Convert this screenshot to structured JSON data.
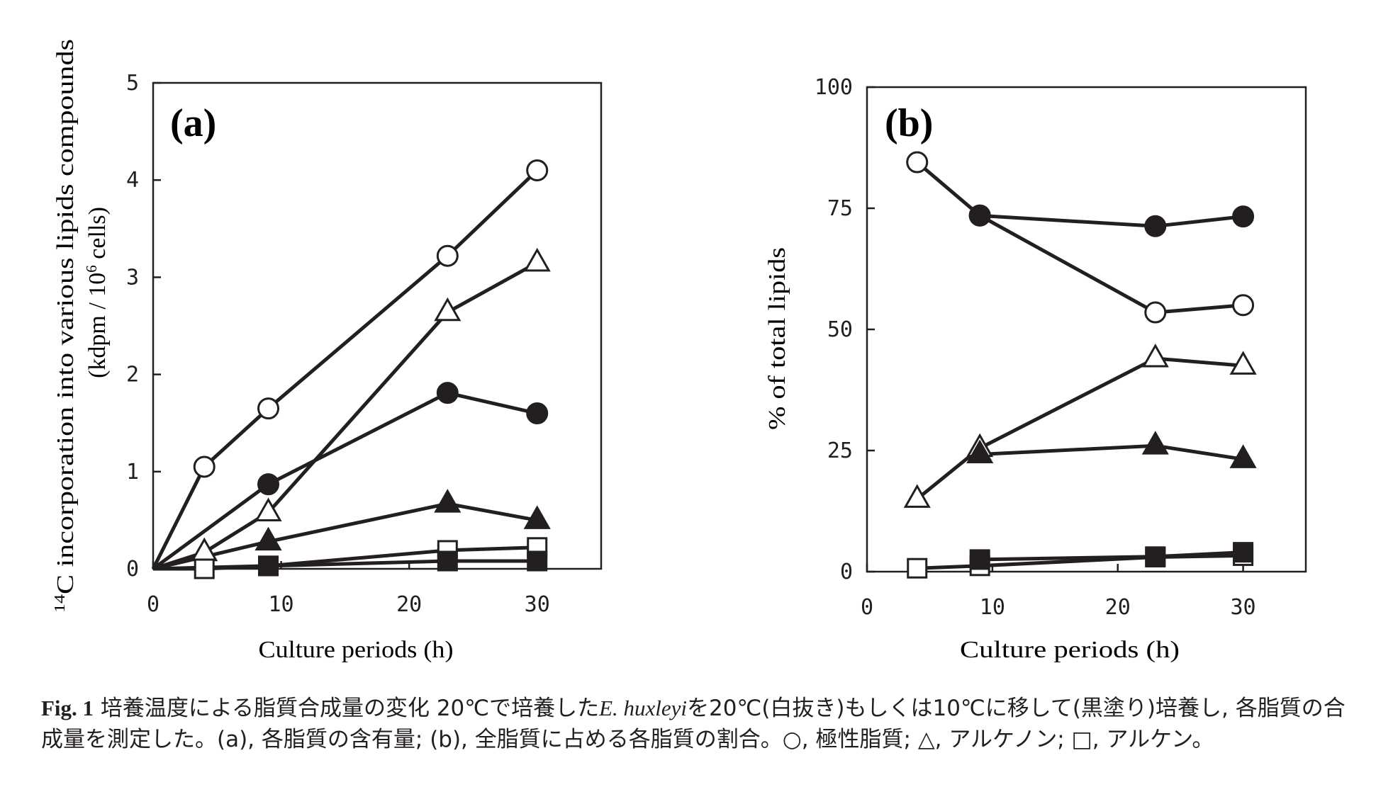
{
  "caption": {
    "fig_label": "Fig. 1",
    "part1": "  培養温度による脂質合成量の変化  20℃で培養した",
    "species": "E. huxleyi",
    "part2": "を20℃(白抜き)もしくは10℃に移して(黒塗り)培養し, 各脂質の合成量を測定した。(a), 各脂質の含有量; (b), 全脂質に占める各脂質の割合。○, 極性脂質; △, アルケノン; □, アルケン。"
  },
  "chart_data": [
    {
      "type": "line",
      "panel_label": "(a)",
      "xlabel": "Culture periods (h)",
      "ylabel_sup": "14",
      "ylabel_line1": "C incorporation into various lipids compounds",
      "ylabel_line2_a": "(kdpm / 10",
      "ylabel_line2_sup": "6",
      "ylabel_line2_b": " cells)",
      "xlim": [
        0,
        35
      ],
      "ylim": [
        0,
        5
      ],
      "xticks": [
        0,
        10,
        20,
        30
      ],
      "yticks": [
        0,
        1,
        2,
        3,
        4,
        5
      ],
      "grid": false,
      "series": [
        {
          "marker": "circle",
          "fill": "open",
          "x": [
            0,
            4,
            9,
            23,
            30
          ],
          "y": [
            0,
            1.05,
            1.65,
            3.22,
            4.1
          ]
        },
        {
          "marker": "triangle",
          "fill": "open",
          "x": [
            0,
            4,
            9,
            23,
            30
          ],
          "y": [
            0,
            0.17,
            0.58,
            2.64,
            3.15
          ]
        },
        {
          "marker": "circle",
          "fill": "solid",
          "x": [
            0,
            9,
            23,
            30
          ],
          "y": [
            0,
            0.87,
            1.81,
            1.6
          ]
        },
        {
          "marker": "triangle",
          "fill": "solid",
          "x": [
            0,
            9,
            23,
            30
          ],
          "y": [
            0,
            0.28,
            0.67,
            0.5
          ]
        },
        {
          "marker": "square",
          "fill": "open",
          "x": [
            0,
            4,
            9,
            23,
            30
          ],
          "y": [
            0,
            0.0,
            0.03,
            0.19,
            0.22
          ]
        },
        {
          "marker": "square",
          "fill": "solid",
          "x": [
            0,
            9,
            23,
            30
          ],
          "y": [
            0,
            0.03,
            0.08,
            0.08
          ]
        }
      ]
    },
    {
      "type": "line",
      "panel_label": "(b)",
      "xlabel": "Culture periods (h)",
      "ylabel": "% of total lipids",
      "xlim": [
        0,
        35
      ],
      "ylim": [
        0,
        100
      ],
      "xticks": [
        0,
        10,
        20,
        30
      ],
      "yticks": [
        0,
        25,
        50,
        75,
        100
      ],
      "grid": false,
      "series": [
        {
          "marker": "circle",
          "fill": "open",
          "x": [
            4,
            9,
            23,
            30
          ],
          "y": [
            84.5,
            73.5,
            53.5,
            55
          ]
        },
        {
          "marker": "circle",
          "fill": "solid",
          "x": [
            9,
            23,
            30
          ],
          "y": [
            73.5,
            71.3,
            73.3
          ]
        },
        {
          "marker": "triangle",
          "fill": "open",
          "x": [
            4,
            9,
            23,
            30
          ],
          "y": [
            15,
            25.5,
            44,
            42.5
          ]
        },
        {
          "marker": "triangle",
          "fill": "solid",
          "x": [
            9,
            23,
            30
          ],
          "y": [
            24.2,
            26,
            23.2
          ]
        },
        {
          "marker": "square",
          "fill": "open",
          "x": [
            4,
            9,
            23,
            30
          ],
          "y": [
            0.7,
            1.2,
            3,
            3.3
          ]
        },
        {
          "marker": "square",
          "fill": "solid",
          "x": [
            9,
            23,
            30
          ],
          "y": [
            2.5,
            3.1,
            4
          ]
        }
      ]
    }
  ]
}
